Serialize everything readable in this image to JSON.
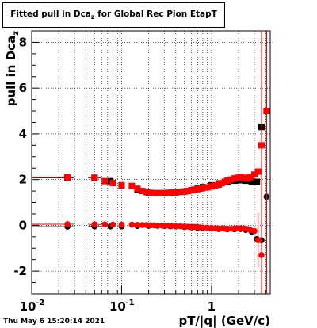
{
  "chart_data": {
    "type": "scatter",
    "title": "Fitted pull in Dca",
    "title_sub": "z",
    "title_rest": " for Global Rec Pion EtapT",
    "xlabel": "pT/|q| (GeV/c)",
    "ylabel": "pull in Dca",
    "ylabel_sub": "z",
    "xscale": "log",
    "xlim": [
      0.01,
      4.5
    ],
    "ylim": [
      -3,
      8.5
    ],
    "grid": true,
    "x_ticks": [
      {
        "value": 0.01,
        "base": "10",
        "exp": "-2"
      },
      {
        "value": 0.1,
        "base": "10",
        "exp": "-1"
      },
      {
        "value": 1,
        "base": "1",
        "exp": ""
      }
    ],
    "y_ticks": [
      -2,
      0,
      2,
      4,
      6,
      8
    ],
    "colors": {
      "red": "#ff0000",
      "black": "#000000"
    },
    "series": [
      {
        "color": "black",
        "marker": "circle",
        "x": [
          0.025,
          0.05,
          0.075,
          0.1,
          0.15,
          0.2,
          0.25,
          0.3,
          0.35,
          0.4,
          0.5,
          0.6,
          0.7,
          0.8,
          1.0,
          1.2,
          1.5,
          1.8,
          2.1,
          2.4,
          2.8,
          3.2,
          3.6,
          4.1
        ],
        "y": [
          -0.06,
          -0.05,
          -0.05,
          -0.05,
          -0.03,
          -0.02,
          -0.02,
          -0.03,
          -0.04,
          -0.05,
          -0.07,
          -0.09,
          -0.11,
          -0.12,
          -0.14,
          -0.16,
          -0.17,
          -0.17,
          -0.16,
          -0.2,
          -0.28,
          -0.6,
          -0.65,
          1.25
        ]
      },
      {
        "color": "black",
        "marker": "square",
        "x": [
          0.025,
          0.05,
          0.075,
          0.1,
          0.15,
          0.2,
          0.25,
          0.3,
          0.35,
          0.4,
          0.5,
          0.6,
          0.7,
          0.8,
          1.0,
          1.2,
          1.5,
          1.8,
          2.1,
          2.4,
          2.8,
          3.2,
          3.6,
          4.1
        ],
        "y": [
          2.08,
          2.08,
          1.93,
          1.75,
          1.55,
          1.42,
          1.4,
          1.4,
          1.42,
          1.44,
          1.48,
          1.54,
          1.6,
          1.67,
          1.75,
          1.83,
          1.9,
          1.95,
          1.97,
          1.95,
          1.92,
          1.9,
          4.3,
          5.0
        ]
      },
      {
        "color": "red",
        "marker": "circle",
        "x": [
          0.025,
          0.05,
          0.065,
          0.08,
          0.1,
          0.13,
          0.15,
          0.17,
          0.19,
          0.21,
          0.23,
          0.25,
          0.28,
          0.3,
          0.33,
          0.36,
          0.4,
          0.45,
          0.5,
          0.55,
          0.6,
          0.65,
          0.7,
          0.75,
          0.8,
          0.9,
          1.0,
          1.1,
          1.2,
          1.3,
          1.4,
          1.5,
          1.65,
          1.8,
          1.95,
          2.1,
          2.3,
          2.5,
          2.7,
          3.0,
          3.3,
          3.6
        ],
        "y": [
          0.05,
          0.04,
          0.04,
          0.03,
          0.03,
          0.03,
          0.02,
          0.01,
          0.01,
          0.0,
          0.0,
          -0.01,
          -0.01,
          -0.02,
          -0.02,
          -0.03,
          -0.04,
          -0.04,
          -0.05,
          -0.06,
          -0.07,
          -0.07,
          -0.08,
          -0.09,
          -0.1,
          -0.11,
          -0.12,
          -0.13,
          -0.14,
          -0.14,
          -0.15,
          -0.15,
          -0.15,
          -0.14,
          -0.13,
          -0.13,
          -0.14,
          -0.16,
          -0.2,
          -0.25,
          -0.65,
          -1.3
        ]
      },
      {
        "color": "red",
        "marker": "square",
        "x": [
          0.025,
          0.05,
          0.065,
          0.08,
          0.1,
          0.13,
          0.15,
          0.17,
          0.19,
          0.21,
          0.23,
          0.25,
          0.28,
          0.3,
          0.33,
          0.36,
          0.4,
          0.45,
          0.5,
          0.55,
          0.6,
          0.65,
          0.7,
          0.75,
          0.8,
          0.9,
          1.0,
          1.1,
          1.2,
          1.3,
          1.4,
          1.5,
          1.65,
          1.8,
          1.95,
          2.1,
          2.3,
          2.5,
          2.7,
          3.0,
          3.3,
          3.6,
          4.1
        ],
        "y": [
          2.1,
          2.08,
          1.93,
          1.85,
          1.75,
          1.72,
          1.6,
          1.5,
          1.45,
          1.42,
          1.41,
          1.41,
          1.41,
          1.41,
          1.42,
          1.43,
          1.44,
          1.46,
          1.48,
          1.5,
          1.53,
          1.56,
          1.58,
          1.61,
          1.63,
          1.66,
          1.7,
          1.74,
          1.78,
          1.84,
          1.9,
          1.95,
          2.0,
          2.05,
          2.08,
          2.1,
          2.08,
          2.05,
          2.1,
          2.22,
          2.35,
          3.5,
          5.0
        ]
      }
    ]
  },
  "footer": {
    "timestamp": "Thu May  6 15:20:14 2021"
  }
}
